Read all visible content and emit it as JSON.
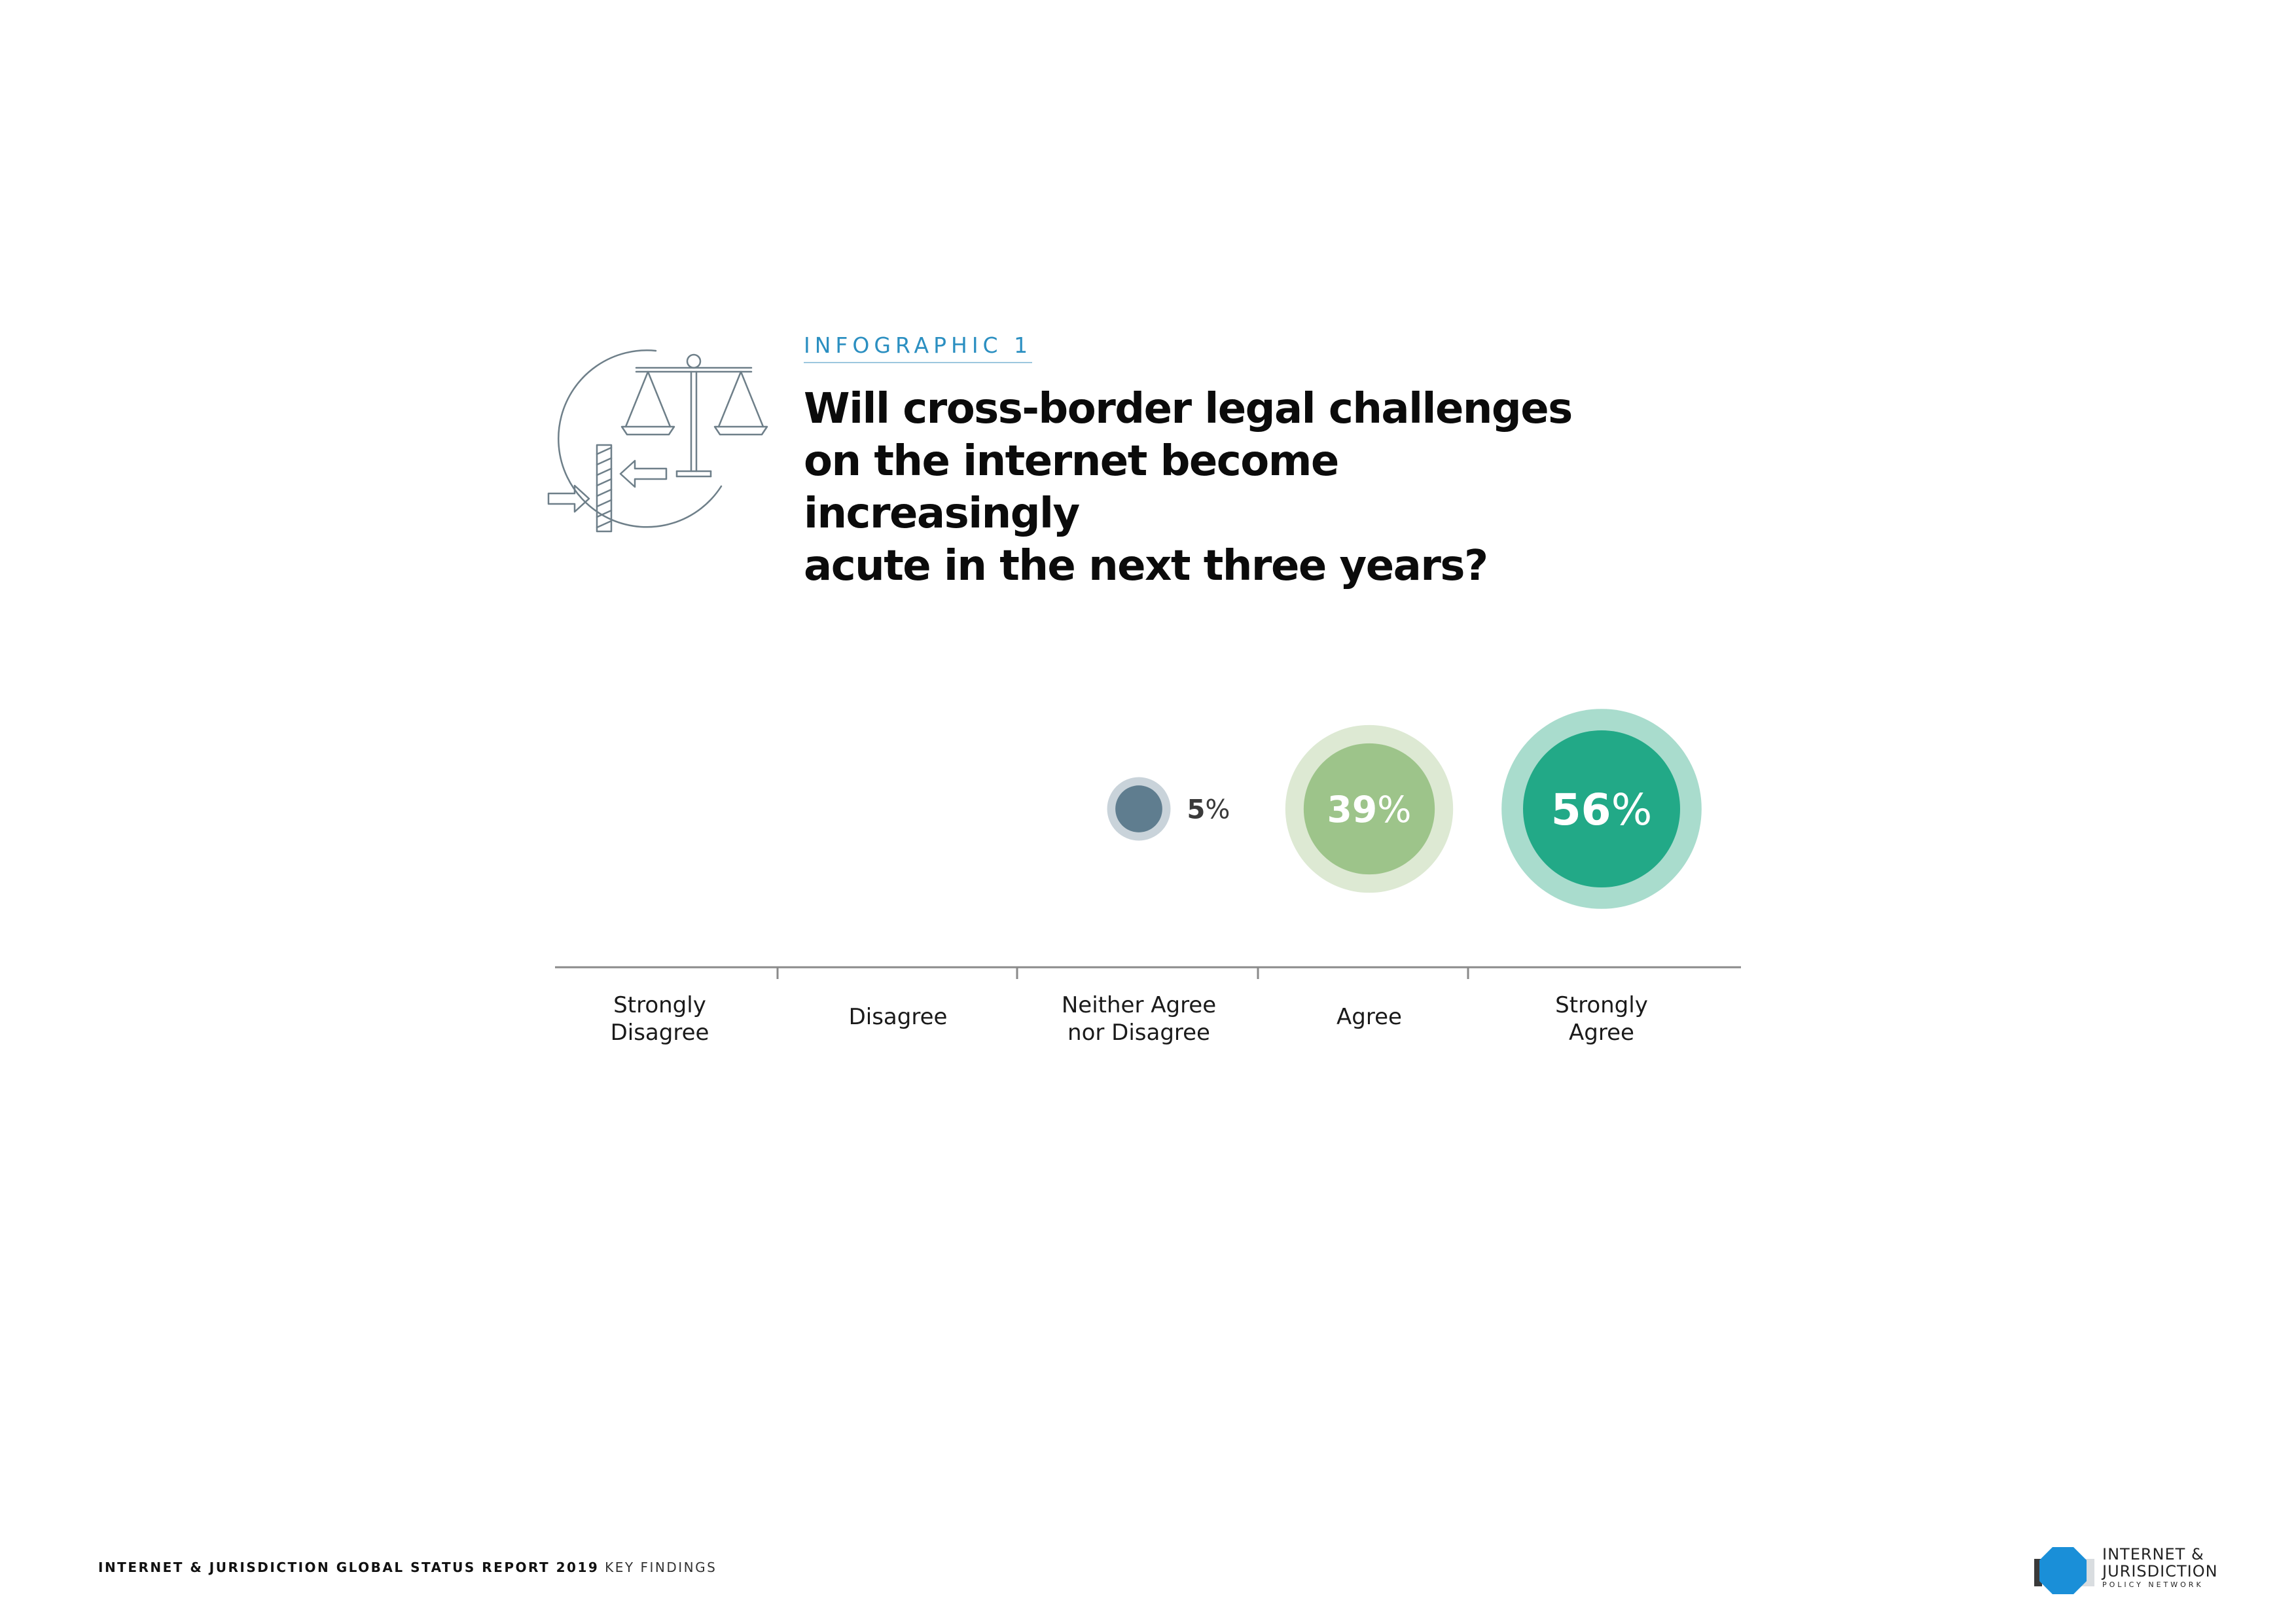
{
  "header": {
    "kicker": "INFOGRAPHIC 1",
    "title": "Will cross-border legal challenges\non the internet become increasingly\nacute in the next three years?",
    "icon": "scale-justice-icon"
  },
  "chart_data": {
    "type": "bubble",
    "title": "Will cross-border legal challenges on the internet become increasingly acute in the next three years?",
    "categories": [
      "Strongly Disagree",
      "Disagree",
      "Neither Agree nor Disagree",
      "Agree",
      "Strongly Agree"
    ],
    "category_labels": [
      [
        "Strongly",
        "Disagree"
      ],
      [
        "Disagree"
      ],
      [
        "Neither Agree",
        "nor Disagree"
      ],
      [
        "Agree"
      ],
      [
        "Strongly",
        "Agree"
      ]
    ],
    "values": [
      0,
      0,
      5,
      39,
      56
    ],
    "value_labels": [
      "",
      "",
      "5%",
      "39%",
      "56%"
    ],
    "unit": "%",
    "colors": [
      "#5f7d8f",
      "#5f7d8f",
      "#5f7d8f",
      "#9dc48a",
      "#22a987"
    ],
    "halo_colors": [
      "#c9d3da",
      "#c9d3da",
      "#c9d3da",
      "#dde9d3",
      "#a9dccd"
    ]
  },
  "footer": {
    "bold_text": "INTERNET & JURISDICTION GLOBAL STATUS REPORT 2019",
    "light_text": " KEY FINDINGS"
  },
  "logo": {
    "line1": "INTERNET &",
    "line2": "JURISDICTION",
    "line3": "POLICY NETWORK",
    "icon": "octagon-logo-icon",
    "color": "#1a8fd8"
  }
}
